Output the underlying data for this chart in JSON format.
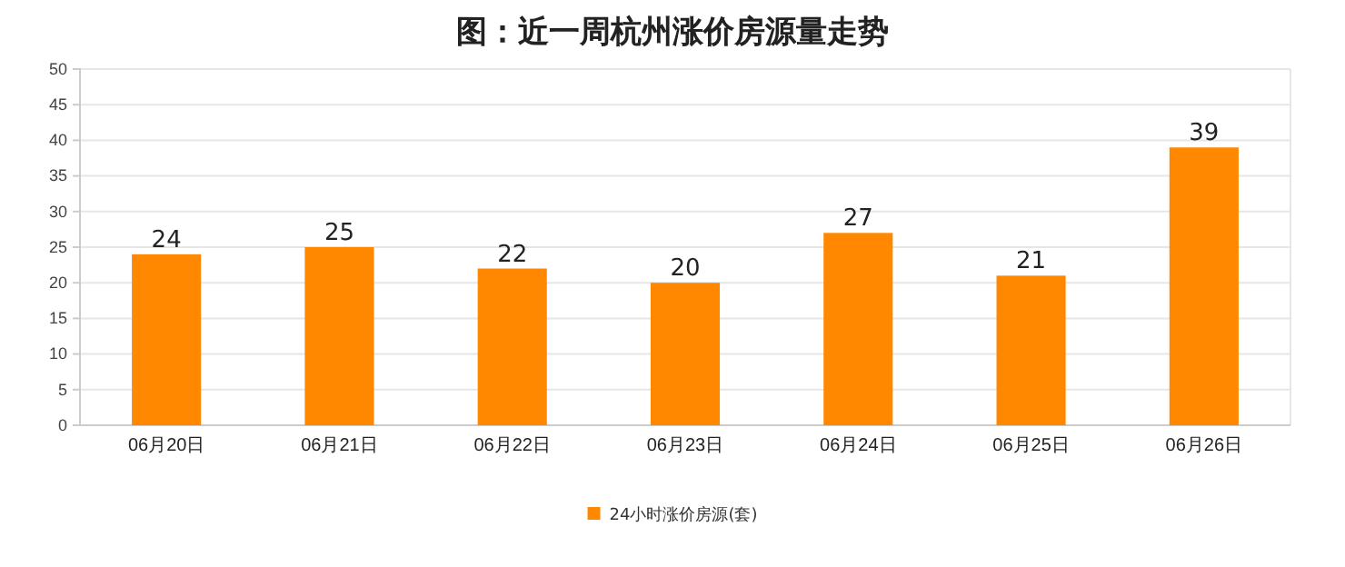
{
  "chart_data": {
    "type": "bar",
    "title": "图：近一周杭州涨价房源量走势",
    "categories": [
      "06月20日",
      "06月21日",
      "06月22日",
      "06月23日",
      "06月24日",
      "06月25日",
      "06月26日"
    ],
    "series": [
      {
        "name": "24小时涨价房源(套)",
        "color": "#ff8800",
        "values": [
          24,
          25,
          22,
          20,
          27,
          21,
          39
        ]
      }
    ],
    "ylim": [
      0,
      50
    ],
    "yticks": [
      0,
      5,
      10,
      15,
      20,
      25,
      30,
      35,
      40,
      45,
      50
    ],
    "grid": "y",
    "legend": "bottom",
    "data_labels": true
  }
}
